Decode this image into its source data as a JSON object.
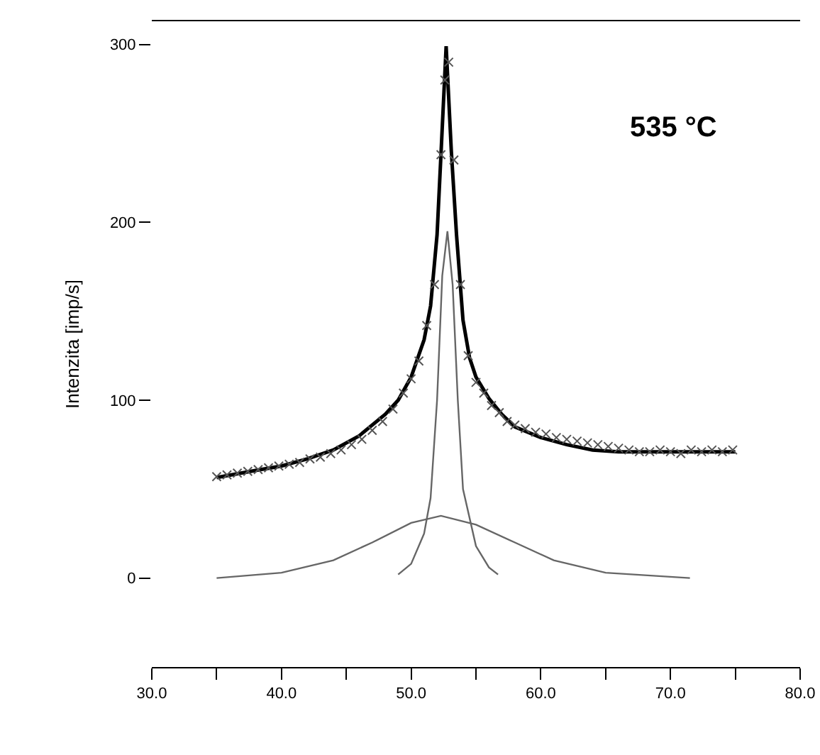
{
  "chart_data": {
    "type": "line",
    "ylabel": "Intenzita [imp/s]",
    "annotations": [
      "535 °C"
    ],
    "xlim": [
      30,
      80
    ],
    "ylim": [
      -50,
      313
    ],
    "xticks": [
      {
        "value": 30,
        "label": "30.0"
      },
      {
        "value": 35,
        "label": null
      },
      {
        "value": 40,
        "label": "40.0"
      },
      {
        "value": 45,
        "label": null
      },
      {
        "value": 50,
        "label": "50.0"
      },
      {
        "value": 55,
        "label": null
      },
      {
        "value": 60,
        "label": "60.0"
      },
      {
        "value": 65,
        "label": null
      },
      {
        "value": 70,
        "label": "70.0"
      },
      {
        "value": 75,
        "label": null
      },
      {
        "value": 80,
        "label": "80.0"
      }
    ],
    "yticks": [
      0,
      100,
      200,
      300
    ],
    "series": [
      {
        "type": "scatter",
        "marker": "cross",
        "color": "#555555",
        "x": [
          35,
          35.8,
          36.6,
          37.4,
          38.2,
          39,
          39.8,
          40.6,
          41.4,
          42.2,
          43,
          43.8,
          44.6,
          45.4,
          46.2,
          47,
          47.8,
          48.6,
          49.4,
          50,
          50.6,
          51.2,
          51.8,
          52.3,
          52.6,
          52.9,
          53.3,
          53.8,
          54.4,
          55,
          55.6,
          56.2,
          56.8,
          57.4,
          58,
          58.8,
          59.6,
          60.4,
          61.2,
          62,
          62.8,
          63.6,
          64.4,
          65.2,
          66,
          66.8,
          67.6,
          68.4,
          69.2,
          70,
          70.8,
          71.6,
          72.4,
          73.2,
          74,
          74.8
        ],
        "values": [
          57,
          58,
          59,
          60,
          61,
          62,
          63,
          64,
          65,
          67,
          68,
          70,
          72,
          75,
          78,
          83,
          88,
          95,
          104,
          112,
          122,
          142,
          165,
          238,
          280,
          290,
          235,
          165,
          125,
          110,
          104,
          97,
          93,
          88,
          86,
          84,
          82,
          81,
          79,
          78,
          77,
          76,
          75,
          74,
          73,
          72,
          71,
          71,
          72,
          71,
          70,
          72,
          71,
          72,
          71,
          72
        ]
      },
      {
        "color": "#000000",
        "x": [
          35,
          38,
          40,
          42,
          44,
          46,
          48,
          49,
          50,
          51,
          51.5,
          52,
          52.3,
          52.7,
          53.1,
          53.5,
          54,
          54.5,
          55,
          56,
          57,
          58,
          60,
          62,
          64,
          66,
          70,
          75
        ],
        "values": [
          56.5,
          60.5,
          63,
          67,
          72,
          80,
          92,
          100,
          113,
          134,
          153,
          193,
          238,
          299,
          240,
          193,
          145,
          124,
          113,
          101,
          92,
          85,
          79,
          75,
          72,
          71,
          71,
          71
        ]
      },
      {
        "color": "#666666",
        "x": [
          49,
          50,
          51,
          51.5,
          52,
          52.4,
          52.8,
          53.2,
          53.6,
          54,
          55,
          56,
          56.7
        ],
        "values": [
          2,
          8,
          25,
          45,
          100,
          170,
          195,
          165,
          100,
          50,
          18,
          6,
          2
        ]
      },
      {
        "color": "#666666",
        "x": [
          35,
          40,
          44,
          47,
          50,
          52.3,
          55,
          58,
          61,
          65,
          71.5
        ],
        "values": [
          0,
          3,
          10,
          20,
          31,
          35,
          30,
          20,
          10,
          3,
          0
        ]
      }
    ]
  }
}
